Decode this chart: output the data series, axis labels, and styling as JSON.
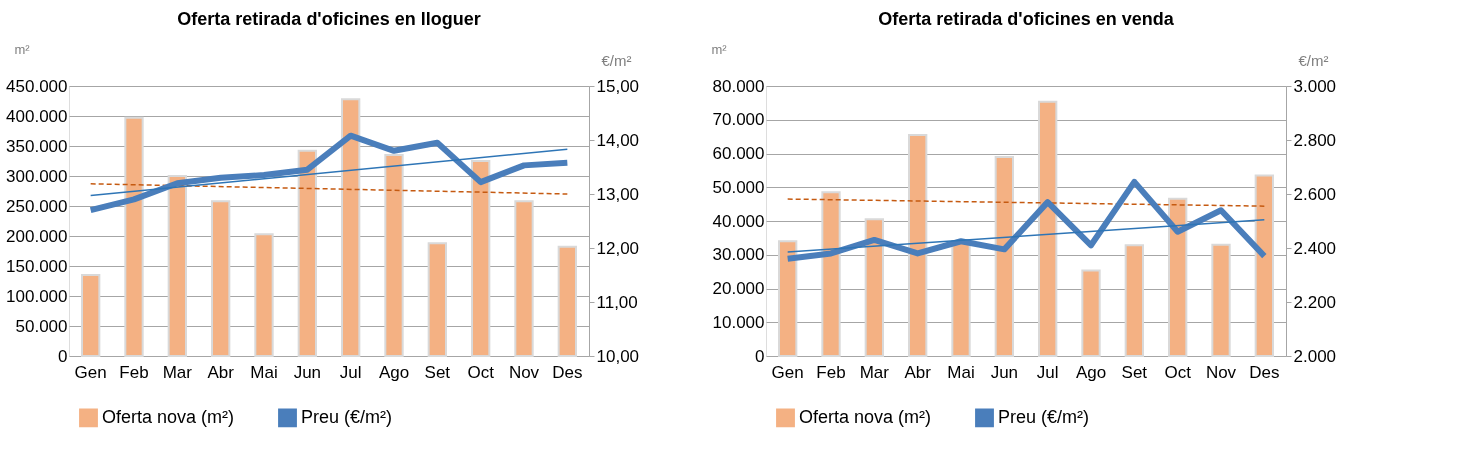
{
  "chart_data": [
    {
      "type": "bar",
      "title": "Oferta retirada d'oficines en lloguer",
      "ylabel": "m²",
      "y2label": "€/m²",
      "categories": [
        "Gen",
        "Feb",
        "Mar",
        "Abr",
        "Mai",
        "Jun",
        "Jul",
        "Ago",
        "Set",
        "Oct",
        "Nov",
        "Des"
      ],
      "series": [
        {
          "type": "bar",
          "name": "Oferta nova (m²)",
          "color": "#f4b183",
          "values": [
            135000,
            397000,
            300000,
            258000,
            203000,
            342000,
            428000,
            335000,
            188000,
            325000,
            258000,
            182000
          ]
        },
        {
          "type": "line",
          "name": "Preu (€/m²)",
          "color": "#4a7ebb",
          "line_style": "solid",
          "axis": "y2",
          "values": [
            12.7,
            12.9,
            13.2,
            13.3,
            13.35,
            13.45,
            14.08,
            13.8,
            13.95,
            13.22,
            13.53,
            13.58
          ]
        },
        {
          "type": "line",
          "color": "#c55a11",
          "line_style": "dashed",
          "x": [
            "Gen",
            "Des"
          ],
          "values": [
            287000,
            270000
          ]
        },
        {
          "type": "line",
          "color": "#2e75b6",
          "line_style": "solid",
          "axis": "y2",
          "x": [
            "Gen",
            "Des"
          ],
          "values": [
            12.97,
            13.83
          ]
        }
      ],
      "ylim": [
        0,
        450000
      ],
      "yticks": [
        0,
        {
          "value": 50000,
          "label": "50.000"
        },
        {
          "value": 100000,
          "label": "100.000"
        },
        {
          "value": 150000,
          "label": "150.000"
        },
        {
          "value": 200000,
          "label": "200.000"
        },
        {
          "value": 250000,
          "label": "250.000"
        },
        {
          "value": 300000,
          "label": "300.000"
        },
        {
          "value": 350000,
          "label": "350.000"
        },
        {
          "value": 400000,
          "label": "400.000"
        },
        {
          "value": 450000,
          "label": "450.000"
        }
      ],
      "y2lim": [
        10,
        15
      ],
      "y2ticks": [
        {
          "value": 10,
          "label": "10,00"
        },
        {
          "value": 11,
          "label": "11,00"
        },
        {
          "value": 12,
          "label": "12,00"
        },
        {
          "value": 13,
          "label": "13,00"
        },
        {
          "value": 14,
          "label": "14,00"
        },
        {
          "value": 15,
          "label": "15,00"
        }
      ],
      "grid": "y",
      "legend": "bottom",
      "marker": "none"
    },
    {
      "type": "bar",
      "title": "Oferta retirada d'oficines en venda",
      "ylabel": "m²",
      "y2label": "€/m²",
      "categories": [
        "Gen",
        "Feb",
        "Mar",
        "Abr",
        "Mai",
        "Jun",
        "Jul",
        "Ago",
        "Set",
        "Oct",
        "Nov",
        "Des"
      ],
      "series": [
        {
          "type": "bar",
          "name": "Oferta nova (m²)",
          "color": "#f4b183",
          "values": [
            34000,
            48500,
            40500,
            65500,
            34000,
            59000,
            75300,
            25300,
            32800,
            46600,
            33000,
            53500
          ]
        },
        {
          "type": "line",
          "name": "Preu (€/m²)",
          "color": "#4a7ebb",
          "line_style": "solid",
          "axis": "y2",
          "values": [
            2360,
            2380,
            2430,
            2380,
            2425,
            2395,
            2570,
            2410,
            2645,
            2460,
            2540,
            2370
          ]
        },
        {
          "type": "line",
          "color": "#c55a11",
          "line_style": "dashed",
          "x": [
            "Gen",
            "Des"
          ],
          "values": [
            46500,
            44400
          ]
        },
        {
          "type": "line",
          "color": "#2e75b6",
          "line_style": "solid",
          "axis": "y2",
          "x": [
            "Gen",
            "Des"
          ],
          "values": [
            2385,
            2505
          ]
        }
      ],
      "ylim": [
        0,
        80000
      ],
      "yticks": [
        0,
        {
          "value": 10000,
          "label": "10.000"
        },
        {
          "value": 20000,
          "label": "20.000"
        },
        {
          "value": 30000,
          "label": "30.000"
        },
        {
          "value": 40000,
          "label": "40.000"
        },
        {
          "value": 50000,
          "label": "50.000"
        },
        {
          "value": 60000,
          "label": "60.000"
        },
        {
          "value": 70000,
          "label": "70.000"
        },
        {
          "value": 80000,
          "label": "80.000"
        }
      ],
      "y2lim": [
        2000,
        3000
      ],
      "y2ticks": [
        {
          "value": 2000,
          "label": "2.000"
        },
        {
          "value": 2200,
          "label": "2.200"
        },
        {
          "value": 2400,
          "label": "2.400"
        },
        {
          "value": 2600,
          "label": "2.600"
        },
        {
          "value": 2800,
          "label": "2.800"
        },
        {
          "value": 3000,
          "label": "3.000"
        }
      ],
      "grid": "y",
      "legend": "bottom",
      "marker": "none"
    }
  ]
}
